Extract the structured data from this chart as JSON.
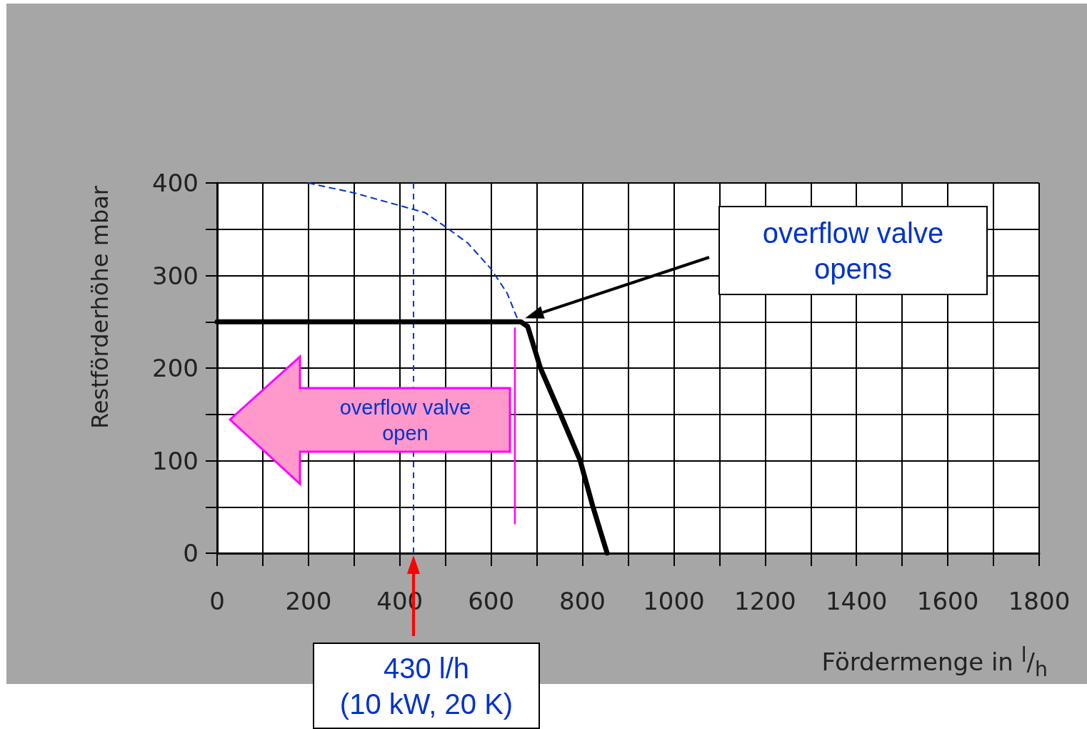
{
  "chart_data": {
    "type": "line",
    "xlabel": "Fördermenge in $^{l}$/$_{h}$",
    "ylabel": "Restförderhöhe mbar",
    "series": [
      {
        "color": "#000000",
        "line_style": "solid",
        "x": [
          0,
          665,
          680,
          708,
          752,
          795,
          823,
          854
        ],
        "values": [
          250,
          250,
          245,
          200,
          150,
          100,
          50,
          0
        ]
      },
      {
        "color": "#0033cc",
        "line_style": "dashed",
        "x": [
          200,
          302,
          455,
          502,
          549,
          600,
          635,
          657
        ],
        "values": [
          400,
          389,
          368,
          352,
          335,
          307,
          281,
          254
        ]
      },
      {
        "color": "#ff00ff",
        "line_style": "solid",
        "x": [
          652,
          652
        ],
        "values": [
          32,
          243
        ]
      }
    ],
    "xlim": [
      0,
      1800
    ],
    "xticks": [
      0,
      {
        "value": 100,
        "label": null
      },
      200,
      {
        "value": 300,
        "label": null
      },
      400,
      {
        "value": 500,
        "label": null
      },
      600,
      {
        "value": 700,
        "label": null
      },
      800,
      {
        "value": 900,
        "label": null
      },
      1000,
      {
        "value": 1100,
        "label": null
      },
      1200,
      {
        "value": 1300,
        "label": null
      },
      1400,
      {
        "value": 1500,
        "label": null
      },
      1600,
      {
        "value": 1700,
        "label": null
      },
      1800
    ],
    "ylim": [
      0,
      400
    ],
    "yticks": [
      0,
      {
        "value": 50,
        "label": null
      },
      100,
      {
        "value": 150,
        "label": null
      },
      200,
      {
        "value": 250,
        "label": null
      },
      300,
      {
        "value": 350,
        "label": null
      },
      400
    ],
    "ref_lines": [
      {
        "axis": "x",
        "value": 430,
        "color": "#0033cc",
        "line_style": "dashed"
      }
    ],
    "annotations": [
      "overflow valve\nopens",
      "overflow valve\nopen",
      "430 l/h\n(10 kW, 20 K)"
    ],
    "grid": true,
    "marker": "none"
  }
}
